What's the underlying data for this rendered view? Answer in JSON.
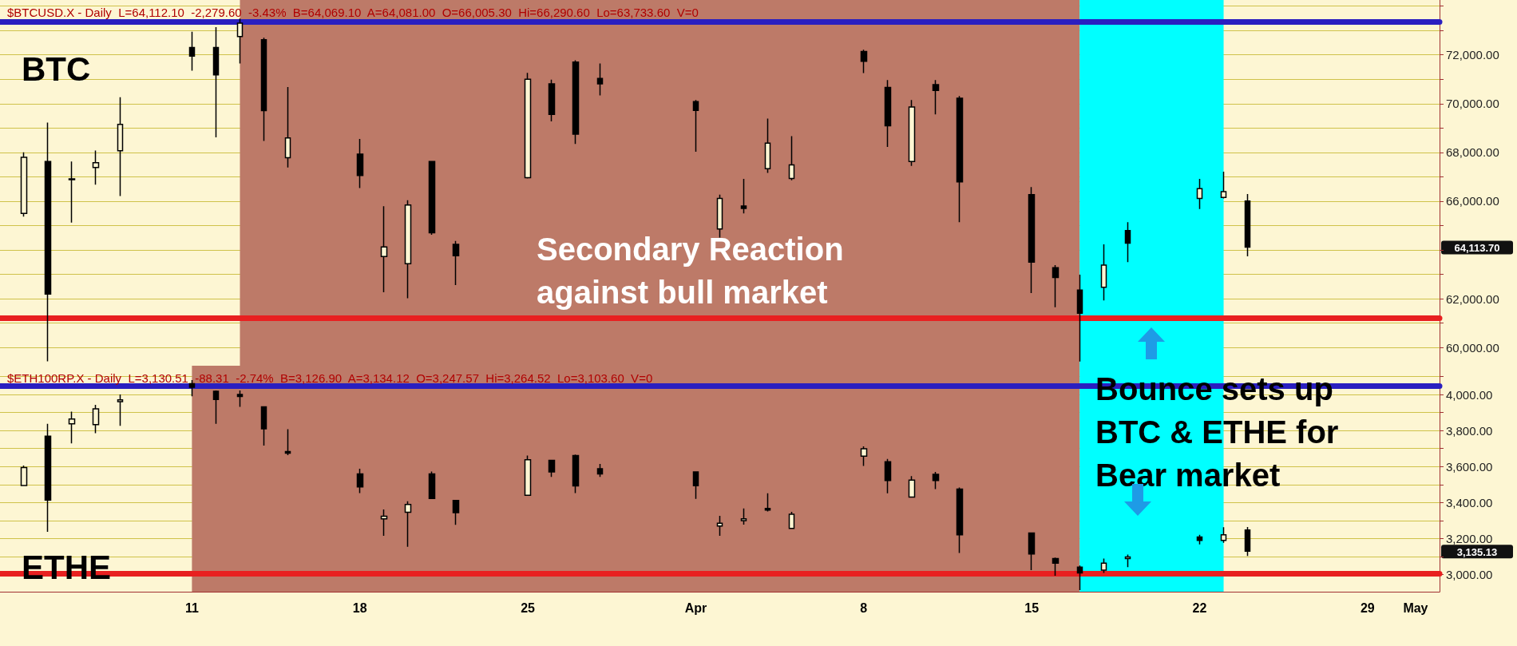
{
  "chart_data": [
    {
      "type": "candlestick",
      "title": "BTC",
      "subtitle": "$BTCUSD.X - Daily  L=64,112.10  -2,279.60  -3.43%  B=64,069.10  A=64,081.00  O=66,005.30  Hi=66,290.60  Lo=63,733.60  V=0",
      "annotations": [
        "Secondary Reaction against bull market",
        "64,113.70"
      ],
      "x": [
        "--03-04",
        "--03-05",
        "--03-06",
        "--03-07",
        "--03-08",
        "--03-11",
        "--03-12",
        "--03-13",
        "--03-14",
        "--03-15",
        "--03-18",
        "--03-19",
        "--03-20",
        "--03-21",
        "--03-22",
        "--03-25",
        "--03-26",
        "--03-27",
        "--03-28",
        "--04-01",
        "--04-02",
        "--04-03",
        "--04-04",
        "--04-05",
        "--04-08",
        "--04-09",
        "--04-10",
        "--04-11",
        "--04-12",
        "--04-15",
        "--04-16",
        "--04-17",
        "--04-18",
        "--04-19",
        "--04-22",
        "--04-23",
        "--04-24"
      ],
      "ohlc": [
        [
          65500,
          68000,
          65370,
          67800
        ],
        [
          67630,
          69220,
          59430,
          62190
        ],
        [
          66880,
          67630,
          65120,
          66910
        ],
        [
          67380,
          68080,
          66680,
          67580
        ],
        [
          68070,
          70260,
          66210,
          69150
        ],
        [
          72300,
          72950,
          71350,
          71950
        ],
        [
          72300,
          73140,
          68620,
          71180
        ],
        [
          72750,
          73490,
          71650,
          73300
        ],
        [
          72620,
          72700,
          68470,
          69710
        ],
        [
          67780,
          70680,
          67380,
          68590
        ],
        [
          67930,
          68550,
          66540,
          67050
        ],
        [
          63730,
          65790,
          62260,
          64120
        ],
        [
          63430,
          66040,
          62020,
          65840
        ],
        [
          67630,
          67650,
          64620,
          64700
        ],
        [
          64230,
          64370,
          62560,
          63760
        ],
        [
          66960,
          71260,
          66930,
          71000
        ],
        [
          70810,
          70980,
          69270,
          69560
        ],
        [
          71700,
          71780,
          68350,
          68750
        ],
        [
          71030,
          71650,
          70340,
          70810
        ],
        [
          70080,
          70150,
          68030,
          69720
        ],
        [
          64860,
          66270,
          64510,
          66110
        ],
        [
          65800,
          66910,
          65500,
          65700
        ],
        [
          67330,
          69390,
          67160,
          68380
        ],
        [
          66930,
          68670,
          66860,
          67490
        ],
        [
          72140,
          72210,
          71250,
          71740
        ],
        [
          70660,
          70970,
          68220,
          69090
        ],
        [
          67630,
          70150,
          67450,
          69860
        ],
        [
          70780,
          70970,
          69560,
          70540
        ],
        [
          70220,
          70310,
          65140,
          66790
        ],
        [
          66270,
          66580,
          62230,
          63500
        ],
        [
          63270,
          63380,
          61650,
          62870
        ],
        [
          62350,
          62980,
          59420,
          61400
        ],
        [
          62470,
          64230,
          61930,
          63380
        ],
        [
          64790,
          65140,
          63500,
          64280
        ],
        [
          66110,
          66910,
          65680,
          66510
        ],
        [
          66150,
          67210,
          66110,
          66390
        ],
        [
          66005.3,
          66290.6,
          63733.6,
          64112.1
        ]
      ],
      "xlim": [
        "--03-03",
        "--05-02"
      ],
      "ylim": [
        59250,
        74250
      ],
      "yticks": [
        {
          "value": 60000,
          "label": "60,000.00"
        },
        {
          "value": 61000,
          "label": null
        },
        {
          "value": 62000,
          "label": "62,000.00"
        },
        {
          "value": 63000,
          "label": null
        },
        {
          "value": 64000,
          "label": null
        },
        {
          "value": 65000,
          "label": null
        },
        {
          "value": 66000,
          "label": "66,000.00"
        },
        {
          "value": 67000,
          "label": null
        },
        {
          "value": 68000,
          "label": "68,000.00"
        },
        {
          "value": 69000,
          "label": null
        },
        {
          "value": 70000,
          "label": "70,000.00"
        },
        {
          "value": 71000,
          "label": null
        },
        {
          "value": 72000,
          "label": "72,000.00"
        },
        {
          "value": 73000,
          "label": null
        },
        {
          "value": 74000,
          "label": null
        }
      ],
      "bands": [
        {
          "axis": "x",
          "from": "--03-13",
          "to": "--04-17",
          "color": "#bd7a68"
        },
        {
          "axis": "x",
          "from": "--04-17",
          "to": "--04-23",
          "color": "#00ffff"
        }
      ],
      "ref_lines": [
        {
          "axis": "y",
          "value": 73350,
          "color": "#2a1fc0",
          "line_style": "solid"
        },
        {
          "axis": "y",
          "value": 61220,
          "color": "#e82020",
          "line_style": "solid"
        }
      ],
      "grid": "y",
      "tick_labels": "y"
    },
    {
      "type": "candlestick",
      "title": "ETHE",
      "subtitle": "$ETH100RP.X - Daily  L=3,130.51  -88.31  -2.74%  B=3,126.90  A=3,134.12  O=3,247.57  Hi=3,264.52  Lo=3,103.60  V=0",
      "annotations": [
        "Bounce sets up BTC & ETHE for Bear market",
        "3,135.13"
      ],
      "x": [
        "--03-04",
        "--03-05",
        "--03-06",
        "--03-07",
        "--03-08",
        "--03-11",
        "--03-12",
        "--03-13",
        "--03-14",
        "--03-15",
        "--03-18",
        "--03-19",
        "--03-20",
        "--03-21",
        "--03-22",
        "--03-25",
        "--03-26",
        "--03-27",
        "--03-28",
        "--04-01",
        "--04-02",
        "--04-03",
        "--04-04",
        "--04-05",
        "--04-08",
        "--04-09",
        "--04-10",
        "--04-11",
        "--04-12",
        "--04-15",
        "--04-16",
        "--04-17",
        "--04-18",
        "--04-19",
        "--04-22",
        "--04-23",
        "--04-24"
      ],
      "ohlc": [
        [
          3495,
          3606,
          3493,
          3595
        ],
        [
          3769,
          3837,
          3238,
          3414
        ],
        [
          3837,
          3905,
          3729,
          3864
        ],
        [
          3833,
          3943,
          3785,
          3921
        ],
        [
          3960,
          4000,
          3826,
          3970
        ],
        [
          4060,
          4080,
          3990,
          4040
        ],
        [
          4018,
          4023,
          3837,
          3973
        ],
        [
          4000,
          4023,
          3932,
          3989
        ],
        [
          3932,
          3934,
          3717,
          3810
        ],
        [
          3683,
          3808,
          3663,
          3674
        ],
        [
          3559,
          3588,
          3453,
          3487
        ],
        [
          3310,
          3362,
          3215,
          3324
        ],
        [
          3346,
          3407,
          3154,
          3389
        ],
        [
          3559,
          3572,
          3419,
          3423
        ],
        [
          3412,
          3415,
          3276,
          3344
        ],
        [
          3441,
          3661,
          3437,
          3638
        ],
        [
          3634,
          3638,
          3543,
          3570
        ],
        [
          3661,
          3667,
          3453,
          3493
        ],
        [
          3588,
          3615,
          3543,
          3559
        ],
        [
          3570,
          3573,
          3421,
          3494
        ],
        [
          3270,
          3326,
          3215,
          3285
        ],
        [
          3300,
          3367,
          3278,
          3310
        ],
        [
          3367,
          3452,
          3351,
          3358
        ],
        [
          3256,
          3348,
          3256,
          3335
        ],
        [
          3658,
          3712,
          3604,
          3699
        ],
        [
          3627,
          3642,
          3452,
          3522
        ],
        [
          3430,
          3547,
          3427,
          3525
        ],
        [
          3557,
          3570,
          3475,
          3522
        ],
        [
          3475,
          3484,
          3120,
          3221
        ],
        [
          3231,
          3231,
          3025,
          3114
        ],
        [
          3089,
          3095,
          2994,
          3063
        ],
        [
          3041,
          3050,
          2914,
          3009
        ],
        [
          3025,
          3089,
          3009,
          3063
        ],
        [
          3089,
          3111,
          3041,
          3098
        ],
        [
          3209,
          3221,
          3168,
          3190
        ],
        [
          3190,
          3263,
          3177,
          3221
        ],
        [
          3247.57,
          3264.52,
          3103.6,
          3130.51
        ]
      ],
      "xlim": [
        "--03-03",
        "--05-02"
      ],
      "xticks": [
        {
          "value": "--03-11",
          "label": "11"
        },
        {
          "value": "--03-18",
          "label": "18"
        },
        {
          "value": "--03-25",
          "label": "25"
        },
        {
          "value": "--04-01",
          "label": "Apr"
        },
        {
          "value": "--04-08",
          "label": "8"
        },
        {
          "value": "--04-15",
          "label": "15"
        },
        {
          "value": "--04-22",
          "label": "22"
        },
        {
          "value": "--04-29",
          "label": "29"
        },
        {
          "value": "--05-01",
          "label": "May"
        }
      ],
      "ylim": [
        2905,
        4160
      ],
      "yticks": [
        {
          "value": 3000,
          "label": "3,000.00"
        },
        {
          "value": 3100,
          "label": null
        },
        {
          "value": 3200,
          "label": "3,200.00"
        },
        {
          "value": 3300,
          "label": null
        },
        {
          "value": 3400,
          "label": "3,400.00"
        },
        {
          "value": 3500,
          "label": null
        },
        {
          "value": 3600,
          "label": "3,600.00"
        },
        {
          "value": 3700,
          "label": null
        },
        {
          "value": 3800,
          "label": "3,800.00"
        },
        {
          "value": 3900,
          "label": null
        },
        {
          "value": 4000,
          "label": "4,000.00"
        },
        {
          "value": 4100,
          "label": null
        }
      ],
      "bands": [
        {
          "axis": "x",
          "from": "--03-11",
          "to": "--04-17",
          "color": "#bd7a68"
        },
        {
          "axis": "x",
          "from": "--04-17",
          "to": "--04-23",
          "color": "#00ffff"
        }
      ],
      "ref_lines": [
        {
          "axis": "y",
          "value": 4046,
          "color": "#2a1fc0",
          "line_style": "solid"
        },
        {
          "axis": "y",
          "value": 3006,
          "color": "#e82020",
          "line_style": "solid"
        }
      ],
      "grid": "y"
    }
  ]
}
